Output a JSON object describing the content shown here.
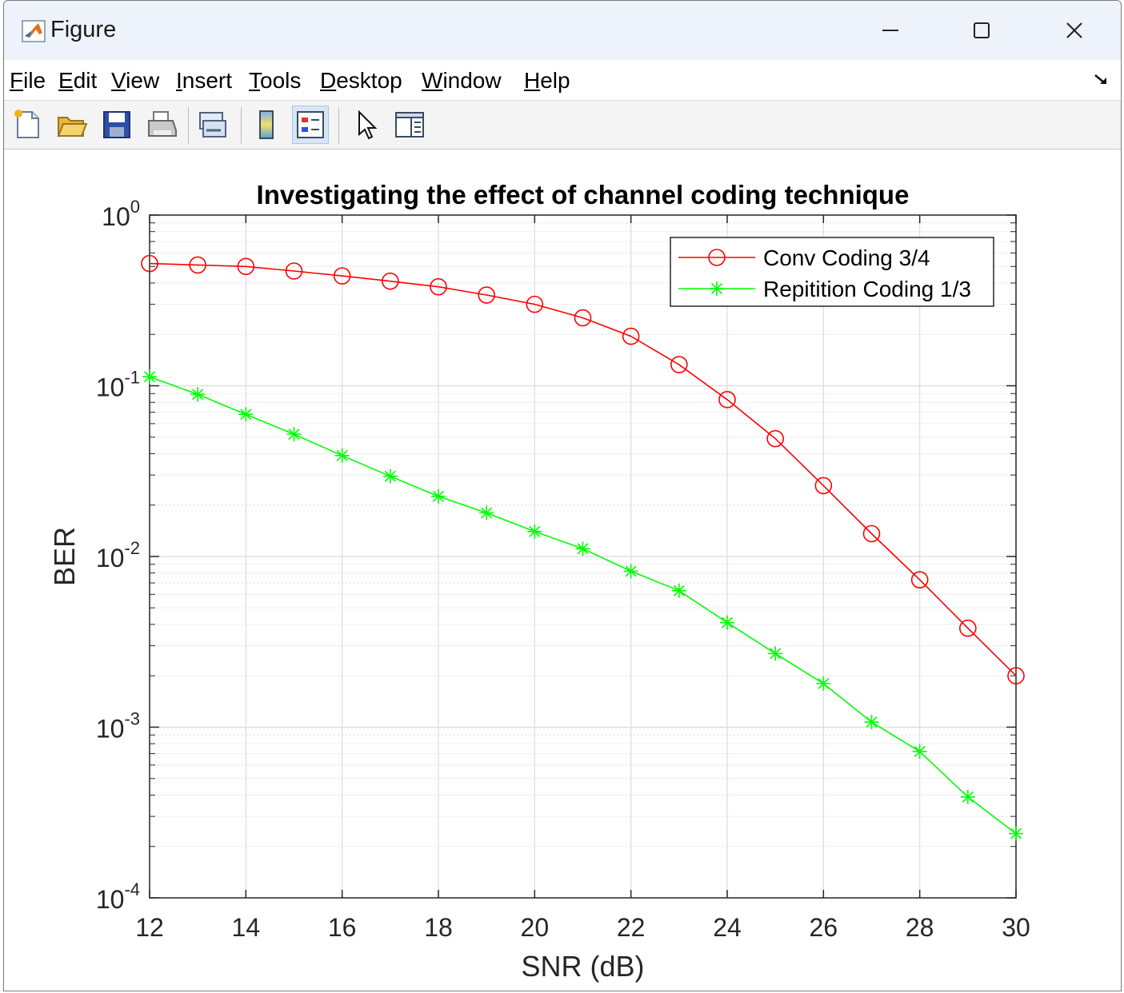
{
  "window": {
    "title": "Figure"
  },
  "menu": [
    {
      "label": "File",
      "key": "F",
      "rest": "ile"
    },
    {
      "label": "Edit",
      "key": "E",
      "rest": "dit"
    },
    {
      "label": "View",
      "key": "V",
      "rest": "iew"
    },
    {
      "label": "Insert",
      "key": "I",
      "rest": "nsert"
    },
    {
      "label": "Tools",
      "key": "T",
      "rest": "ools"
    },
    {
      "label": "Desktop",
      "key": "D",
      "rest": "esktop"
    },
    {
      "label": "Window",
      "key": "W",
      "rest": "indow"
    },
    {
      "label": "Help",
      "key": "H",
      "rest": "elp"
    }
  ],
  "toolbar": [
    {
      "name": "new-figure-icon"
    },
    {
      "name": "open-file-icon"
    },
    {
      "name": "save-icon"
    },
    {
      "name": "print-icon"
    },
    {
      "name": "link-plot-icon"
    },
    {
      "name": "colorbar-icon"
    },
    {
      "name": "legend-icon",
      "active": true
    },
    {
      "name": "edit-plot-cursor-icon"
    },
    {
      "name": "property-inspector-icon"
    }
  ],
  "chart_data": {
    "type": "line",
    "title": "Investigating the effect of channel coding technique",
    "xlabel": "SNR (dB)",
    "ylabel": "BER",
    "xlim": [
      12,
      30
    ],
    "ylim": [
      0.0001,
      1
    ],
    "yscale": "log",
    "grid": true,
    "legend_position": "top-right",
    "xticks": [
      12,
      14,
      16,
      18,
      20,
      22,
      24,
      26,
      28,
      30
    ],
    "yticks": [
      {
        "value": 1,
        "base": "10",
        "exp": "0"
      },
      {
        "value": 0.1,
        "base": "10",
        "exp": "-1"
      },
      {
        "value": 0.01,
        "base": "10",
        "exp": "-2"
      },
      {
        "value": 0.001,
        "base": "10",
        "exp": "-3"
      },
      {
        "value": 0.0001,
        "base": "10",
        "exp": "-4"
      }
    ],
    "x": [
      12,
      13,
      14,
      15,
      16,
      17,
      18,
      19,
      20,
      21,
      22,
      23,
      24,
      25,
      26,
      27,
      28,
      29,
      30
    ],
    "series": [
      {
        "name": "Conv Coding 3/4",
        "color": "#ff0000",
        "marker": "circle",
        "values": [
          0.52,
          0.51,
          0.5,
          0.47,
          0.44,
          0.41,
          0.38,
          0.34,
          0.3,
          0.25,
          0.195,
          0.133,
          0.083,
          0.049,
          0.026,
          0.0136,
          0.0073,
          0.0038,
          0.002
        ]
      },
      {
        "name": "Repitition Coding 1/3",
        "color": "#00ff00",
        "marker": "asterisk",
        "values": [
          0.113,
          0.089,
          0.068,
          0.052,
          0.039,
          0.0295,
          0.0225,
          0.018,
          0.014,
          0.0111,
          0.0082,
          0.0063,
          0.0041,
          0.0027,
          0.0018,
          0.00107,
          0.00072,
          0.00039,
          0.000238
        ]
      }
    ]
  }
}
